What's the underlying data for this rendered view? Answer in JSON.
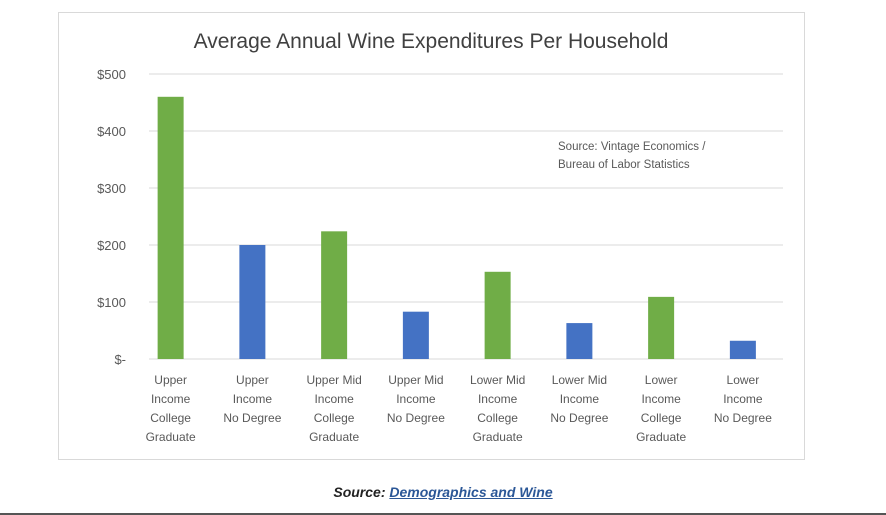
{
  "chart_data": {
    "type": "bar",
    "title": "Average Annual Wine Expenditures Per Household",
    "annotation": [
      "Source: Vintage Economics /",
      "Bureau of Labor Statistics"
    ],
    "xlabel": "",
    "ylabel": "",
    "ylim": [
      0,
      500
    ],
    "yticks": [
      0,
      100,
      200,
      300,
      400,
      500
    ],
    "ytick_labels": [
      "$-",
      "$100",
      "$200",
      "$300",
      "$400",
      "$500"
    ],
    "grid": true,
    "legend": null,
    "categories": [
      [
        "Upper",
        "Income",
        "College",
        "Graduate"
      ],
      [
        "Upper",
        "Income",
        "No Degree"
      ],
      [
        "Upper Mid",
        "Income",
        "College",
        "Graduate"
      ],
      [
        "Upper Mid",
        "Income",
        "No Degree"
      ],
      [
        "Lower Mid",
        "Income",
        "College",
        "Graduate"
      ],
      [
        "Lower Mid",
        "Income",
        "No Degree"
      ],
      [
        "Lower",
        "Income",
        "College",
        "Graduate"
      ],
      [
        "Lower",
        "Income",
        "No Degree"
      ]
    ],
    "values": [
      460,
      200,
      224,
      83,
      153,
      63,
      109,
      32
    ],
    "bar_colors": [
      "#70ad47",
      "#4472c4",
      "#70ad47",
      "#4472c4",
      "#70ad47",
      "#4472c4",
      "#70ad47",
      "#4472c4"
    ]
  },
  "caption": {
    "prefix": "Source: ",
    "link_text": "Demographics and Wine"
  },
  "colors": {
    "green": "#70ad47",
    "blue": "#4472c4",
    "grid": "#d9d9d9",
    "text": "#595959",
    "link": "#2b5797"
  }
}
